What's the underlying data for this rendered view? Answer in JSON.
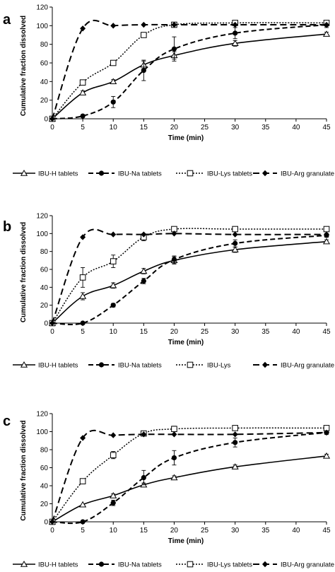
{
  "figure": {
    "panel_labels": [
      "a",
      "b",
      "c"
    ],
    "ylabel": "Cumulative fraction dissolved",
    "xlabel": "Time (min)"
  },
  "chart_data": [
    {
      "type": "line",
      "panel": "a",
      "xlabel": "Time (min)",
      "ylabel": "Cumulative fraction dissolved",
      "xlim": [
        0,
        45
      ],
      "ylim": [
        0,
        120
      ],
      "xticks": [
        0,
        5,
        10,
        15,
        20,
        25,
        30,
        35,
        40,
        45
      ],
      "yticks": [
        0,
        20,
        40,
        60,
        80,
        100,
        120
      ],
      "grid": false,
      "legend_position": "bottom",
      "series": [
        {
          "name": "IBU-H tablets",
          "style": "solid",
          "marker": "open-triangle",
          "x": [
            0,
            5,
            10,
            15,
            20,
            30,
            45
          ],
          "y": [
            0,
            28,
            40,
            58,
            68,
            81,
            91
          ],
          "err": [
            0,
            2,
            2,
            4,
            4,
            3,
            2
          ]
        },
        {
          "name": "IBU-Na tablets",
          "style": "dashed",
          "marker": "filled-circle",
          "x": [
            0,
            5,
            10,
            15,
            20,
            30,
            45
          ],
          "y": [
            0,
            3,
            18,
            52,
            75,
            92,
            101
          ],
          "err": [
            0,
            1,
            6,
            11,
            13,
            6,
            3
          ]
        },
        {
          "name": "IBU-Lys tablets",
          "style": "dotted",
          "marker": "open-square",
          "x": [
            0,
            5,
            10,
            15,
            20,
            30,
            45
          ],
          "y": [
            0,
            39,
            60,
            90,
            101,
            103,
            103
          ],
          "err": [
            0,
            2,
            2,
            2,
            2,
            2,
            2
          ]
        },
        {
          "name": "IBU-Arg granulate",
          "style": "long-dash",
          "marker": "filled-diamond",
          "x": [
            0,
            5,
            10,
            15,
            20,
            30,
            45
          ],
          "y": [
            0,
            97,
            100,
            101,
            101,
            101,
            101
          ],
          "err": [
            0,
            1,
            1,
            1,
            1,
            1,
            1
          ]
        }
      ]
    },
    {
      "type": "line",
      "panel": "b",
      "xlabel": "Time (min)",
      "ylabel": "Cumulative fraction dissolved",
      "xlim": [
        0,
        45
      ],
      "ylim": [
        0,
        120
      ],
      "xticks": [
        0,
        5,
        10,
        15,
        20,
        25,
        30,
        35,
        40,
        45
      ],
      "yticks": [
        0,
        20,
        40,
        60,
        80,
        100,
        120
      ],
      "grid": false,
      "legend_position": "bottom",
      "series": [
        {
          "name": "IBU-H tablets",
          "style": "solid",
          "marker": "open-triangle",
          "x": [
            0,
            5,
            10,
            15,
            20,
            30,
            45
          ],
          "y": [
            0,
            30,
            42,
            58,
            70,
            82,
            91
          ],
          "err": [
            0,
            4,
            3,
            3,
            4,
            3,
            2
          ]
        },
        {
          "name": "IBU-Na tablets",
          "style": "dashed",
          "marker": "filled-circle",
          "x": [
            0,
            5,
            10,
            15,
            20,
            30,
            45
          ],
          "y": [
            0,
            0,
            20,
            47,
            71,
            89,
            98
          ],
          "err": [
            0,
            1,
            2,
            3,
            4,
            4,
            2
          ]
        },
        {
          "name": "IBU-Lys tablets",
          "style": "dotted",
          "marker": "open-square",
          "x": [
            0,
            5,
            10,
            15,
            20,
            30,
            45
          ],
          "y": [
            0,
            51,
            69,
            96,
            105,
            105,
            105
          ],
          "err": [
            0,
            11,
            7,
            4,
            2,
            2,
            2
          ]
        },
        {
          "name": "IBU-Arg granulate",
          "style": "long-dash",
          "marker": "filled-diamond",
          "x": [
            0,
            5,
            10,
            15,
            20,
            30,
            45
          ],
          "y": [
            0,
            96,
            99,
            99,
            100,
            99,
            99
          ],
          "err": [
            0,
            1,
            1,
            1,
            1,
            1,
            1
          ]
        }
      ]
    },
    {
      "type": "line",
      "panel": "c",
      "xlabel": "Time (min)",
      "ylabel": "Cumulative fraction dissolved",
      "xlim": [
        0,
        45
      ],
      "ylim": [
        0,
        120
      ],
      "xticks": [
        0,
        5,
        10,
        15,
        20,
        25,
        30,
        35,
        40,
        45
      ],
      "yticks": [
        0,
        20,
        40,
        60,
        80,
        100,
        120
      ],
      "grid": false,
      "legend_position": "bottom",
      "series": [
        {
          "name": "IBU-H tablets",
          "style": "solid",
          "marker": "open-triangle",
          "x": [
            0,
            5,
            10,
            15,
            20,
            30,
            45
          ],
          "y": [
            0,
            19,
            29,
            41,
            49,
            61,
            73
          ],
          "err": [
            0,
            1,
            2,
            2,
            2,
            2,
            2
          ]
        },
        {
          "name": "IBU-Na tablets",
          "style": "dashed",
          "marker": "filled-circle",
          "x": [
            0,
            5,
            10,
            15,
            20,
            30,
            45
          ],
          "y": [
            0,
            0,
            21,
            49,
            71,
            88,
            99
          ],
          "err": [
            0,
            1,
            3,
            8,
            8,
            5,
            2
          ]
        },
        {
          "name": "IBU-Lys",
          "style": "dotted",
          "marker": "open-square",
          "x": [
            0,
            5,
            10,
            15,
            20,
            30,
            45
          ],
          "y": [
            0,
            45,
            74,
            98,
            103,
            104,
            104
          ],
          "err": [
            0,
            2,
            4,
            2,
            3,
            2,
            2
          ]
        },
        {
          "name": "IBU-Arg granulate",
          "style": "long-dash",
          "marker": "filled-diamond",
          "x": [
            0,
            5,
            10,
            15,
            20,
            30,
            45
          ],
          "y": [
            0,
            93,
            96,
            97,
            97,
            97,
            99
          ],
          "err": [
            0,
            1,
            1,
            1,
            1,
            1,
            1
          ]
        }
      ]
    }
  ],
  "legends": [
    [
      "IBU-H tablets",
      "IBU-Na tablets",
      "IBU-Lys tablets",
      "IBU-Arg granulate"
    ],
    [
      "IBU-H tablets",
      "IBU-Na tablets",
      "IBU-Lys",
      "IBU-Arg granulate"
    ],
    [
      "IBU-H tablets",
      "IBU-Na tablets",
      "IBU-Lys tablets",
      "IBU-Arg granulate"
    ]
  ]
}
